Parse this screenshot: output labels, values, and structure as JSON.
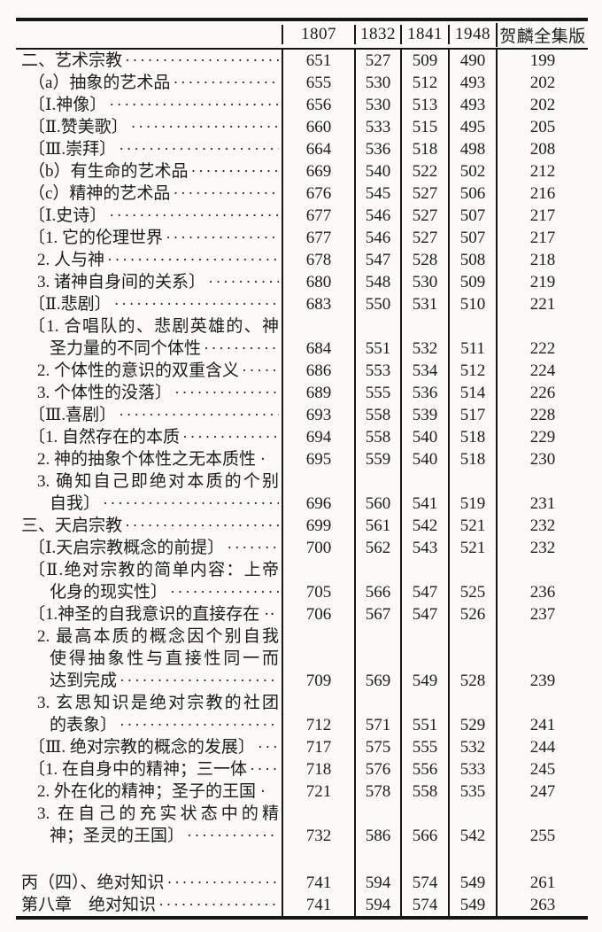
{
  "page": {
    "ink_color": "#1c1c1c",
    "paper_color": "#fbfaf7",
    "rule_color": "#171717"
  },
  "table": {
    "headers": [
      "",
      "1807",
      "1832",
      "1841",
      "1948",
      "贺麟全集版"
    ],
    "rows": [
      {
        "title": "二、艺术宗教",
        "indent": 0,
        "leader": true,
        "values": [
          "651",
          "527",
          "509",
          "490",
          "199"
        ]
      },
      {
        "title": "（a）抽象的艺术品",
        "indent": 1,
        "leader": true,
        "values": [
          "655",
          "530",
          "512",
          "493",
          "202"
        ]
      },
      {
        "title": "〔Ⅰ.神像〕",
        "indent": 1,
        "leader": true,
        "values": [
          "656",
          "530",
          "513",
          "493",
          "202"
        ]
      },
      {
        "title": "〔Ⅱ.赞美歌〕",
        "indent": 1,
        "leader": true,
        "values": [
          "660",
          "533",
          "515",
          "495",
          "205"
        ]
      },
      {
        "title": "〔Ⅲ.崇拜〕",
        "indent": 1,
        "leader": true,
        "values": [
          "664",
          "536",
          "518",
          "498",
          "208"
        ]
      },
      {
        "title": "（b）有生命的艺术品",
        "indent": 1,
        "leader": true,
        "values": [
          "669",
          "540",
          "522",
          "502",
          "212"
        ]
      },
      {
        "title": "（c）精神的艺术品",
        "indent": 1,
        "leader": true,
        "values": [
          "676",
          "545",
          "527",
          "506",
          "216"
        ]
      },
      {
        "title": "〔Ⅰ.史诗〕",
        "indent": 1,
        "leader": true,
        "values": [
          "677",
          "546",
          "527",
          "507",
          "217"
        ]
      },
      {
        "title": "〔1. 它的伦理世界",
        "indent": 1,
        "leader": true,
        "values": [
          "677",
          "546",
          "527",
          "507",
          "217"
        ]
      },
      {
        "title": "2. 人与神 ",
        "indent": 2,
        "leader": true,
        "values": [
          "678",
          "547",
          "528",
          "508",
          "218"
        ]
      },
      {
        "title": "3. 诸神自身间的关系〕",
        "indent": 2,
        "leader": true,
        "values": [
          "680",
          "548",
          "530",
          "509",
          "219"
        ]
      },
      {
        "title": "〔Ⅱ.悲剧〕",
        "indent": 1,
        "leader": true,
        "values": [
          "683",
          "550",
          "531",
          "510",
          "221"
        ]
      },
      {
        "title": "〔1. 合唱队的、悲剧英雄的、神",
        "indent": 1,
        "justify": true,
        "leader": false,
        "values": null
      },
      {
        "title": "圣力量的不同个体性",
        "indent": 3,
        "leader": true,
        "values": [
          "684",
          "551",
          "532",
          "511",
          "222"
        ]
      },
      {
        "title": "2. 个体性的意识的双重含义",
        "indent": 2,
        "leader": true,
        "values": [
          "686",
          "553",
          "534",
          "512",
          "224"
        ]
      },
      {
        "title": "3. 个体性的没落〕",
        "indent": 2,
        "leader": true,
        "values": [
          "689",
          "555",
          "536",
          "514",
          "226"
        ]
      },
      {
        "title": "〔Ⅲ.喜剧〕",
        "indent": 1,
        "leader": true,
        "values": [
          "693",
          "558",
          "539",
          "517",
          "228"
        ]
      },
      {
        "title": "〔1. 自然存在的本质",
        "indent": 1,
        "leader": true,
        "values": [
          "694",
          "558",
          "540",
          "518",
          "229"
        ]
      },
      {
        "title": "2. 神的抽象个体性之无本质性 ·",
        "indent": 2,
        "leader": false,
        "values": [
          "695",
          "559",
          "540",
          "518",
          "230"
        ]
      },
      {
        "title": "3. 确知自己即绝对本质的个别",
        "indent": 2,
        "justify": true,
        "leader": false,
        "values": null
      },
      {
        "title": "自我〕",
        "indent": 3,
        "leader": true,
        "values": [
          "696",
          "560",
          "541",
          "519",
          "231"
        ]
      },
      {
        "title": "三、天启宗教",
        "indent": 0,
        "leader": true,
        "values": [
          "699",
          "561",
          "542",
          "521",
          "232"
        ]
      },
      {
        "title": "〔Ⅰ.天启宗教概念的前提〕",
        "indent": 1,
        "leader": true,
        "values": [
          "700",
          "562",
          "543",
          "521",
          "232"
        ]
      },
      {
        "title": "〔Ⅱ.绝对宗教的简单内容：上帝",
        "indent": 1,
        "justify": true,
        "leader": false,
        "values": null
      },
      {
        "title": "化身的现实性〕",
        "indent": 3,
        "leader": true,
        "values": [
          "705",
          "566",
          "547",
          "525",
          "236"
        ]
      },
      {
        "title": "〔1.神圣的自我意识的直接存在 ··",
        "indent": 1,
        "leader": false,
        "values": [
          "706",
          "567",
          "547",
          "526",
          "237"
        ]
      },
      {
        "title": "2. 最高本质的概念因个别自我",
        "indent": 2,
        "justify": true,
        "leader": false,
        "values": null
      },
      {
        "title": "使得抽象性与直接性同一而",
        "indent": 3,
        "justify": true,
        "leader": false,
        "values": null
      },
      {
        "title": "达到完成",
        "indent": 3,
        "leader": true,
        "values": [
          "709",
          "569",
          "549",
          "528",
          "239"
        ]
      },
      {
        "title": "3. 玄思知识是绝对宗教的社团",
        "indent": 2,
        "justify": true,
        "leader": false,
        "values": null
      },
      {
        "title": "的表象〕",
        "indent": 3,
        "leader": true,
        "values": [
          "712",
          "571",
          "551",
          "529",
          "241"
        ]
      },
      {
        "title": "〔Ⅲ. 绝对宗教的概念的发展〕",
        "indent": 1,
        "leader": true,
        "values": [
          "717",
          "575",
          "555",
          "532",
          "244"
        ]
      },
      {
        "title": "〔1. 在自身中的精神；三一体",
        "indent": 1,
        "leader": true,
        "values": [
          "718",
          "576",
          "556",
          "533",
          "245"
        ]
      },
      {
        "title": "2. 外在化的精神；圣子的王国 ·",
        "indent": 2,
        "leader": false,
        "values": [
          "721",
          "578",
          "558",
          "535",
          "247"
        ]
      },
      {
        "title": "3. 在自己的充实状态中的精",
        "indent": 2,
        "justify": true,
        "leader": false,
        "values": null
      },
      {
        "title": "神；圣灵的王国〕",
        "indent": 3,
        "leader": true,
        "values": [
          "732",
          "586",
          "566",
          "542",
          "255"
        ]
      },
      {
        "spacer": true
      },
      {
        "title": "丙（四）、绝对知识",
        "indent": 0,
        "leader": true,
        "values": [
          "741",
          "594",
          "574",
          "549",
          "261"
        ]
      },
      {
        "title": "第八章　绝对知识",
        "indent": 0,
        "leader": true,
        "values": [
          "741",
          "594",
          "574",
          "549",
          "263"
        ]
      }
    ]
  }
}
